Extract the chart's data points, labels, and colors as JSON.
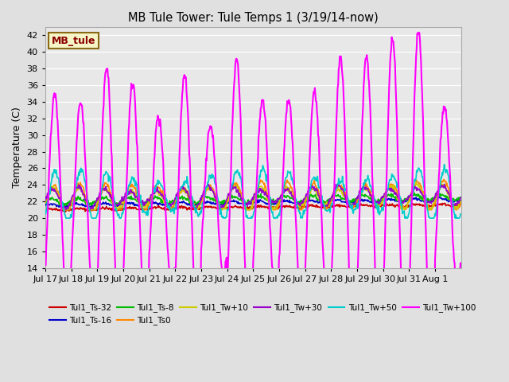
{
  "title": "MB Tule Tower: Tule Temps 1 (3/19/14-now)",
  "ylabel": "Temperature (C)",
  "ylim": [
    14,
    43
  ],
  "yticks": [
    14,
    16,
    18,
    20,
    22,
    24,
    26,
    28,
    30,
    32,
    34,
    36,
    38,
    40,
    42
  ],
  "bg_color": "#e0e0e0",
  "plot_bg_color": "#e8e8e8",
  "grid_color": "white",
  "legend_label": "MB_tule",
  "legend_box_color": "#f5f5c8",
  "legend_box_edge": "#8b6914",
  "series": [
    {
      "label": "Tul1_Ts-32",
      "color": "#cc0000",
      "lw": 1.2
    },
    {
      "label": "Tul1_Ts-16",
      "color": "#0000cc",
      "lw": 1.2
    },
    {
      "label": "Tul1_Ts-8",
      "color": "#00bb00",
      "lw": 1.2
    },
    {
      "label": "Tul1_Ts0",
      "color": "#ff8800",
      "lw": 1.2
    },
    {
      "label": "Tul1_Tw+10",
      "color": "#cccc00",
      "lw": 1.2
    },
    {
      "label": "Tul1_Tw+30",
      "color": "#9900cc",
      "lw": 1.2
    },
    {
      "label": "Tul1_Tw+50",
      "color": "#00cccc",
      "lw": 1.2
    },
    {
      "label": "Tul1_Tw+100",
      "color": "#ff00ff",
      "lw": 1.5
    }
  ],
  "x_tick_labels": [
    "Jul 17",
    "Jul 18",
    "Jul 19",
    "Jul 20",
    "Jul 21",
    "Jul 22",
    "Jul 23",
    "Jul 24",
    "Jul 25",
    "Jul 26",
    "Jul 27",
    "Jul 28",
    "Jul 29",
    "Jul 30",
    "Jul 31",
    "Aug 1"
  ],
  "x_tick_pos": [
    0,
    1,
    2,
    3,
    4,
    5,
    6,
    7,
    8,
    9,
    10,
    11,
    12,
    13,
    14,
    15
  ],
  "n_days": 16,
  "pts_per_day": 48,
  "peak_amps_tw100": [
    13,
    12,
    16,
    14,
    10,
    15,
    9,
    17,
    12,
    12,
    13,
    17,
    17,
    19,
    20,
    11
  ]
}
